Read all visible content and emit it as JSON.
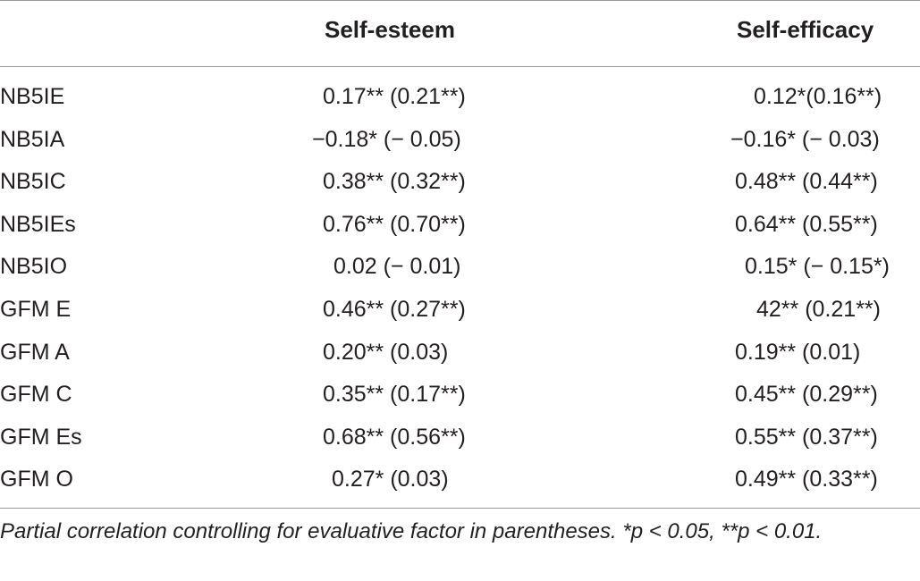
{
  "table": {
    "headers": {
      "label": "",
      "self_esteem": "Self-esteem",
      "self_efficacy": "Self-efficacy"
    },
    "rows": [
      {
        "label": "NB5IE",
        "self_esteem": "0.17** (0.21**)",
        "self_efficacy": "0.12*(0.16**)",
        "esteem_pad": 61,
        "efficacy_pad": 83
      },
      {
        "label": "NB5IA",
        "self_esteem": "−0.18* (− 0.05)",
        "self_efficacy": "−0.16* (− 0.03)",
        "esteem_pad": 49,
        "efficacy_pad": 57
      },
      {
        "label": "NB5IC",
        "self_esteem": "0.38** (0.32**)",
        "self_efficacy": "0.48** (0.44**)",
        "esteem_pad": 61,
        "efficacy_pad": 62
      },
      {
        "label": "NB5IEs",
        "self_esteem": "0.76** (0.70**)",
        "self_efficacy": "0.64** (0.55**)",
        "esteem_pad": 61,
        "efficacy_pad": 62
      },
      {
        "label": "NB5IO",
        "self_esteem": "0.02 (− 0.01)",
        "self_efficacy": "0.15* (− 0.15*)",
        "esteem_pad": 73,
        "efficacy_pad": 73
      },
      {
        "label": "GFM E",
        "self_esteem": "0.46** (0.27**)",
        "self_efficacy": "42** (0.21**)",
        "esteem_pad": 61,
        "efficacy_pad": 86
      },
      {
        "label": "GFM A",
        "self_esteem": "0.20** (0.03)",
        "self_efficacy": "0.19** (0.01)",
        "esteem_pad": 61,
        "efficacy_pad": 62
      },
      {
        "label": "GFM C",
        "self_esteem": "0.35** (0.17**)",
        "self_efficacy": "0.45** (0.29**)",
        "esteem_pad": 61,
        "efficacy_pad": 62
      },
      {
        "label": "GFM Es",
        "self_esteem": "0.68** (0.56**)",
        "self_efficacy": "0.55** (0.37**)",
        "esteem_pad": 61,
        "efficacy_pad": 62
      },
      {
        "label": "GFM O",
        "self_esteem": "0.27* (0.03)",
        "self_efficacy": "0.49** (0.33**)",
        "esteem_pad": 71,
        "efficacy_pad": 62
      }
    ],
    "footnote": "Partial correlation controlling for evaluative factor in parentheses. *p < 0.05, **p < 0.01."
  }
}
